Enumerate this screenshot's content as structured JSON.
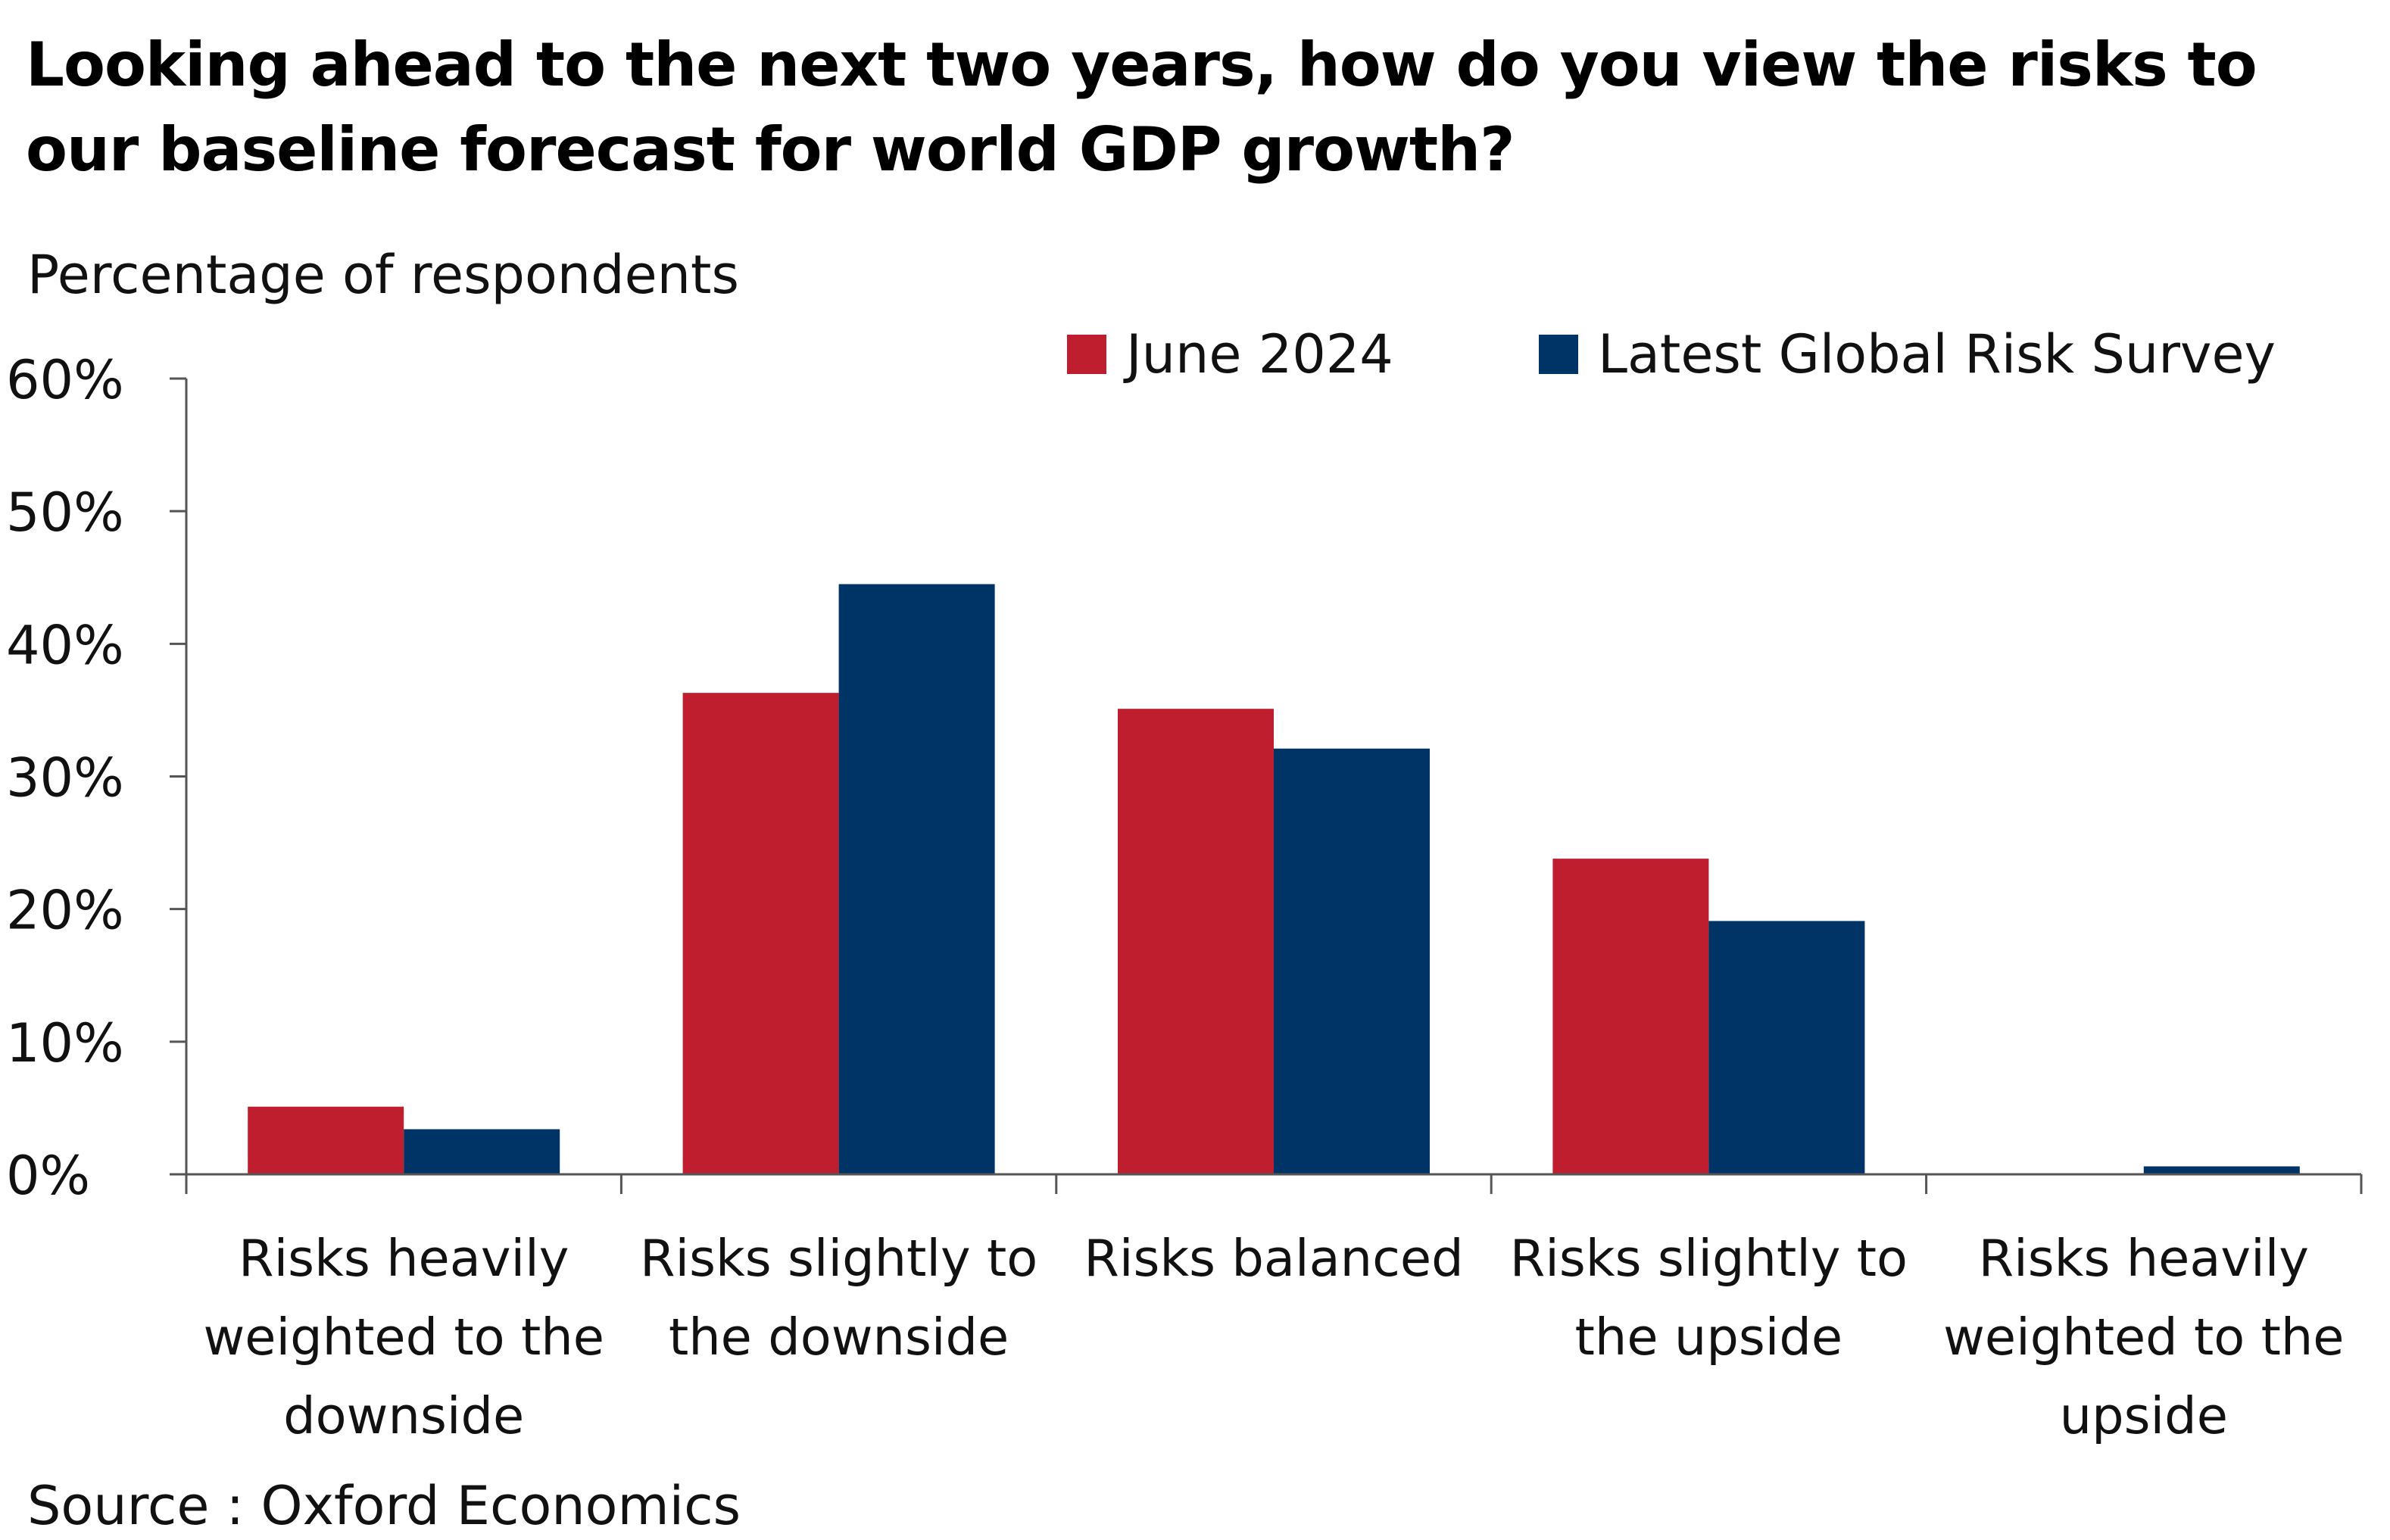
{
  "chart_data": {
    "type": "bar",
    "title": "Looking ahead to the next two years, how do you view the risks to our baseline forecast for world GDP growth?",
    "subtitle": "Percentage of respondents",
    "source": "Source : Oxford Economics",
    "categories": [
      [
        "Risks heavily",
        "weighted to the",
        "downside"
      ],
      [
        "Risks slightly to",
        "the downside"
      ],
      [
        "Risks balanced"
      ],
      [
        "Risks slightly to",
        "the upside"
      ],
      [
        "Risks heavily",
        "weighted to the",
        "upside"
      ]
    ],
    "series": [
      {
        "name": "June 2024",
        "color": "#be1e2d",
        "values": [
          5.1,
          36.3,
          35.1,
          23.8,
          0
        ]
      },
      {
        "name": "Latest Global Risk Survey",
        "color": "#003366",
        "values": [
          3.4,
          44.5,
          32.1,
          19.1,
          0.6
        ]
      }
    ],
    "ylim": [
      0,
      60
    ],
    "yticks": [
      0,
      10,
      20,
      30,
      40,
      50,
      60
    ],
    "ytick_labels": [
      "0%",
      "10%",
      "20%",
      "30%",
      "40%",
      "50%",
      "60%"
    ],
    "legend_position": "top-right",
    "grid": false
  }
}
